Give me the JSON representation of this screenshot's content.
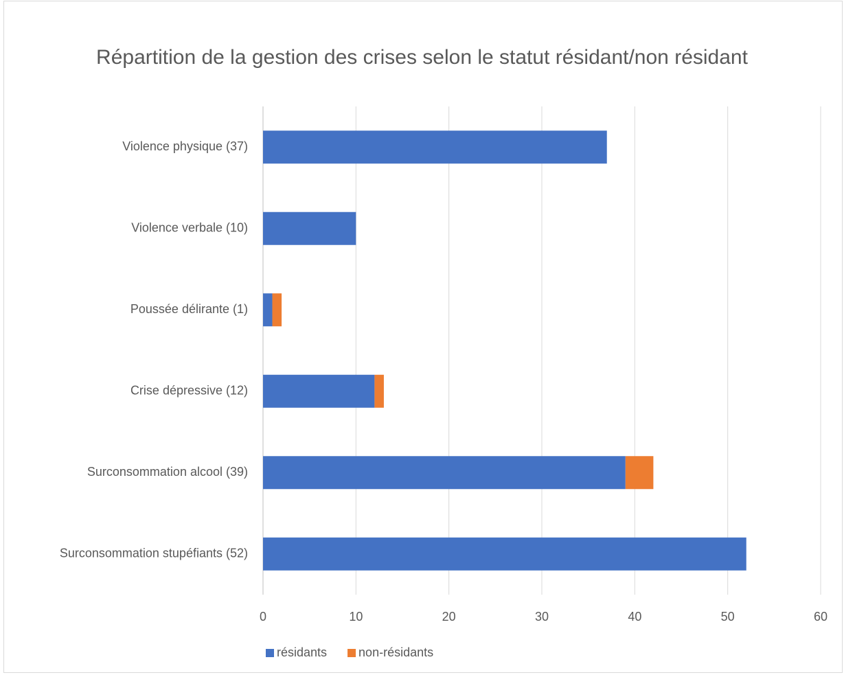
{
  "chart_data": {
    "type": "stacked_bar_horizontal",
    "title": "Répartition de la gestion des crises selon le statut résidant/non résidant",
    "categories": [
      "Violence physique (37)",
      "Violence verbale (10)",
      "Poussée délirante (1)",
      "Crise dépressive (12)",
      "Surconsommation alcool (39)",
      "Surconsommation stupéfiants (52)"
    ],
    "series": [
      {
        "name": "résidants",
        "color": "#4472c4",
        "values": [
          37,
          10,
          1,
          12,
          39,
          52
        ]
      },
      {
        "name": "non-résidants",
        "color": "#ed7d31",
        "values": [
          0,
          0,
          1,
          1,
          3,
          0
        ]
      }
    ],
    "xlim": [
      0,
      60
    ],
    "xticks": [
      0,
      10,
      20,
      30,
      40,
      50,
      60
    ],
    "grid": true,
    "legend": "bottom"
  }
}
